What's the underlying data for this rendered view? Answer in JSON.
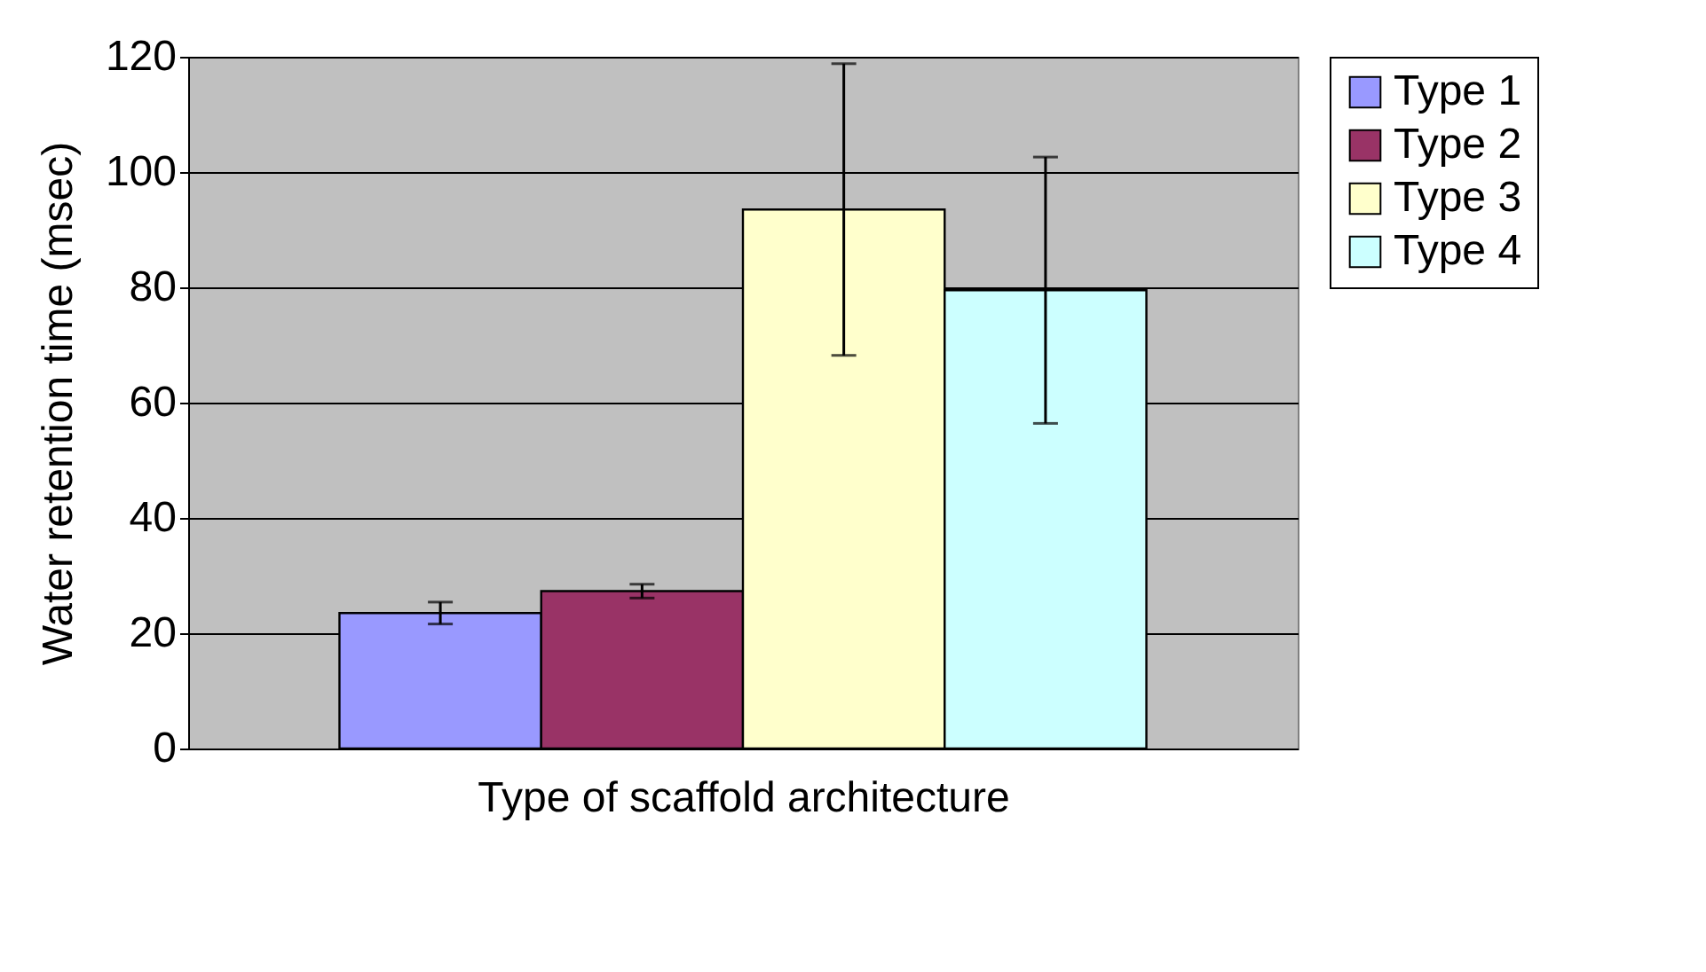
{
  "chart_data": {
    "type": "bar",
    "xlabel": "Type of scaffold architecture",
    "ylabel": "Water retention time (msec)",
    "categories": [
      null
    ],
    "series": [
      {
        "name": "Type 1",
        "color": "#9999ff",
        "values": [
          23.5
        ],
        "errors": [
          1.9
        ]
      },
      {
        "name": "Type 2",
        "color": "#993366",
        "values": [
          27.3
        ],
        "errors": [
          1.2
        ]
      },
      {
        "name": "Type 3",
        "color": "#ffffcc",
        "values": [
          93.5
        ],
        "errors": [
          25.3
        ]
      },
      {
        "name": "Type 4",
        "color": "#ccffff",
        "values": [
          79.5
        ],
        "errors": [
          23.1
        ]
      }
    ],
    "ylim": [
      0,
      120
    ],
    "yticks": [
      0,
      20,
      40,
      60,
      80,
      100,
      120
    ],
    "grid": "y",
    "legend": "right"
  }
}
